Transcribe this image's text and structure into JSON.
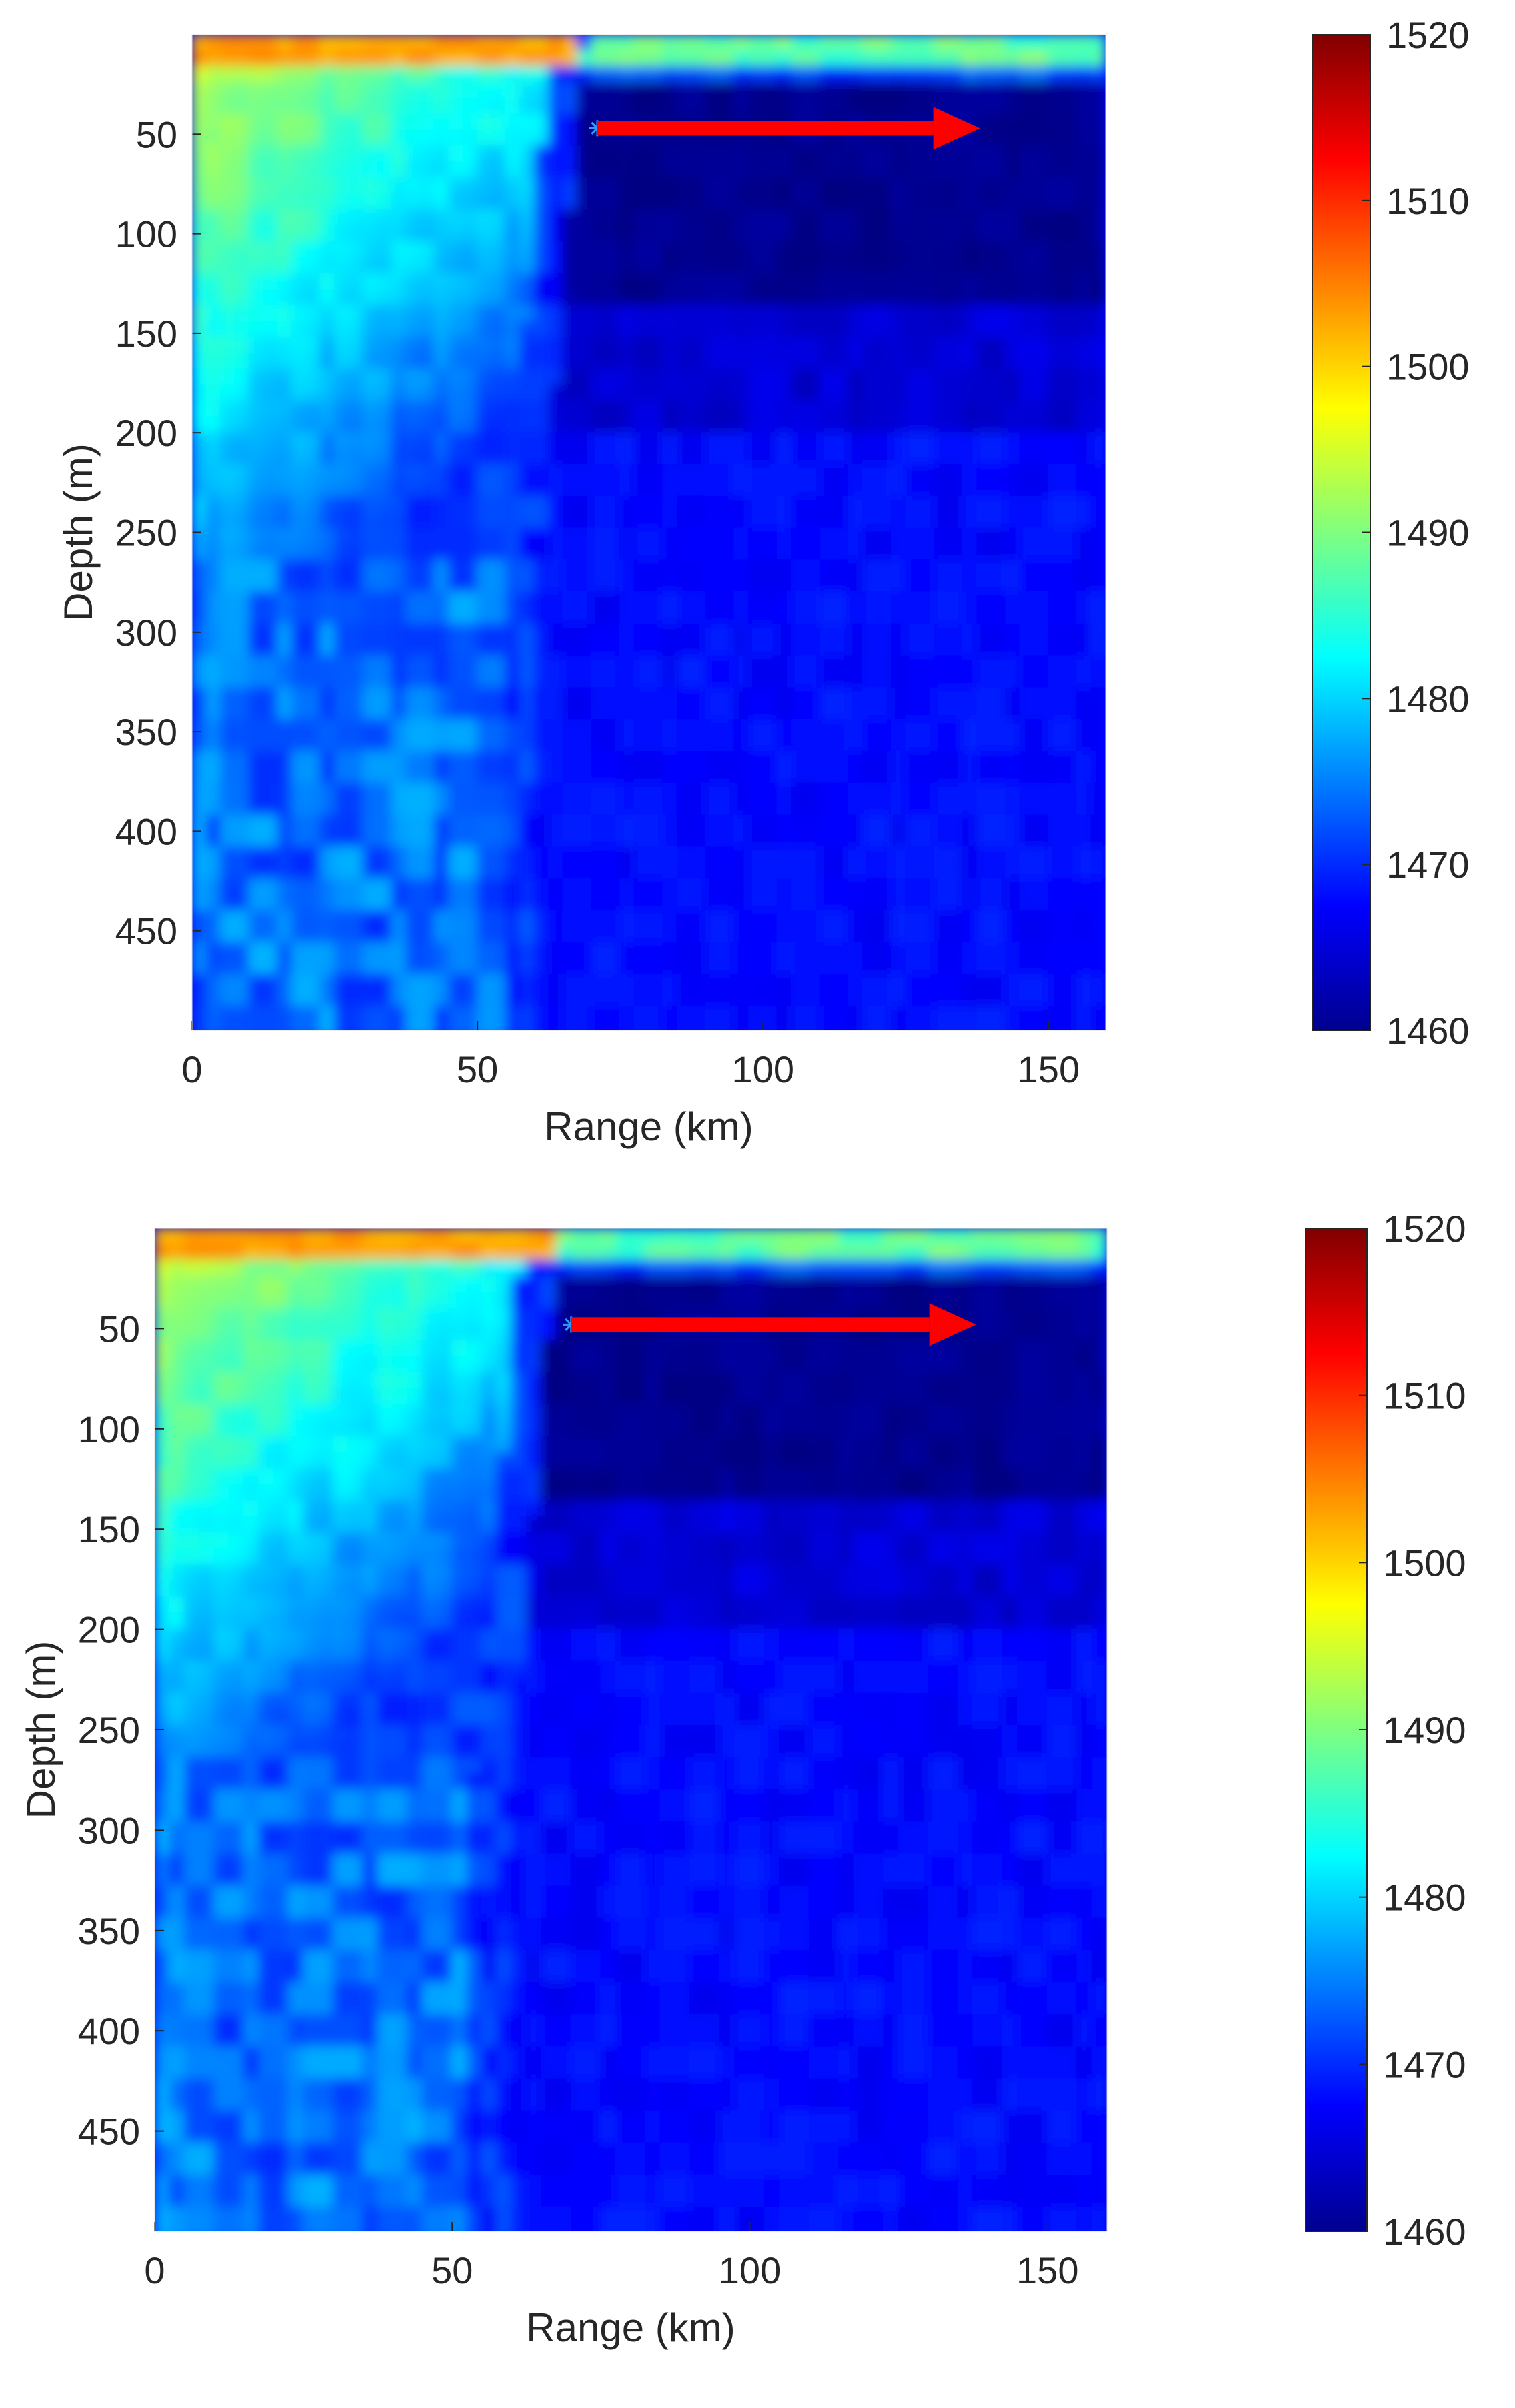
{
  "chart_data": [
    {
      "type": "heatmap",
      "title": "",
      "xlabel": "Range (km)",
      "ylabel": "Depth (m)",
      "xlim": [
        0,
        160
      ],
      "ylim": [
        0,
        500
      ],
      "y_reversed": true,
      "xticks": [
        0,
        50,
        100,
        150
      ],
      "yticks": [
        50,
        100,
        150,
        200,
        250,
        300,
        350,
        400,
        450
      ],
      "colorbar": {
        "colormap": "jet",
        "range": [
          1460,
          1520
        ],
        "ticks": [
          1460,
          1470,
          1480,
          1490,
          1500,
          1510,
          1520
        ]
      },
      "annotations": [
        {
          "type": "marker",
          "symbol": "*",
          "x": 71,
          "y": 47,
          "color": "#3399ff"
        },
        {
          "type": "arrow",
          "x_start": 71,
          "x_end": 138,
          "y": 47,
          "color": "#ff0000"
        }
      ],
      "field_description": {
        "surface_layer": {
          "depth_max": 20,
          "x_range": [
            0,
            68
          ],
          "value": 1503
        },
        "front_x_km": 67,
        "warm_core_value": 1495,
        "deep_left_value": 1474,
        "deep_right_value": 1468,
        "cold_core_value": 1461
      }
    },
    {
      "type": "heatmap",
      "title": "",
      "xlabel": "Range (km)",
      "ylabel": "Depth (m)",
      "xlim": [
        0,
        160
      ],
      "ylim": [
        0,
        500
      ],
      "y_reversed": true,
      "xticks": [
        0,
        50,
        100,
        150
      ],
      "yticks": [
        50,
        100,
        150,
        200,
        250,
        300,
        350,
        400,
        450
      ],
      "colorbar": {
        "colormap": "jet",
        "range": [
          1460,
          1520
        ],
        "ticks": [
          1460,
          1470,
          1480,
          1490,
          1500,
          1510,
          1520
        ]
      },
      "annotations": [
        {
          "type": "marker",
          "symbol": "*",
          "x": 70,
          "y": 48,
          "color": "#3399ff"
        },
        {
          "type": "arrow",
          "x_start": 70,
          "x_end": 138,
          "y": 48,
          "color": "#ff0000"
        }
      ],
      "field_description": {
        "surface_layer": {
          "depth_max": 20,
          "x_range": [
            0,
            68
          ],
          "value": 1503
        },
        "front_x_km": 66,
        "warm_core_value": 1495,
        "deep_left_value": 1474,
        "deep_right_value": 1468,
        "cold_core_value": 1461
      }
    }
  ]
}
